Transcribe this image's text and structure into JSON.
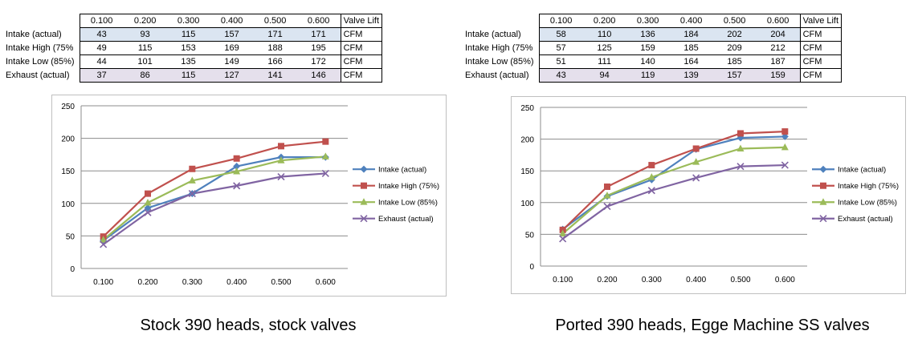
{
  "chart_data": [
    {
      "type": "line",
      "title": "",
      "caption": "Stock 390 heads, stock valves",
      "header_label": "Valve Lift",
      "unit": "CFM",
      "categories": [
        "0.100",
        "0.200",
        "0.300",
        "0.400",
        "0.500",
        "0.600"
      ],
      "ylim": [
        0,
        250
      ],
      "yticks": [
        0,
        50,
        100,
        150,
        200,
        250
      ],
      "grid": true,
      "legend": "right",
      "table_labels": [
        "Intake (actual)",
        "Intake High (75%",
        "Intake Low (85%)",
        "Exhaust (actual)"
      ],
      "series": [
        {
          "name": "Intake (actual)",
          "values": [
            43,
            93,
            115,
            157,
            171,
            171
          ],
          "color": "#4f81bd",
          "marker": "diamond"
        },
        {
          "name": "Intake High (75%)",
          "values": [
            49,
            115,
            153,
            169,
            188,
            195
          ],
          "color": "#c0504d",
          "marker": "square"
        },
        {
          "name": "Intake Low (85%)",
          "values": [
            44,
            101,
            135,
            149,
            166,
            172
          ],
          "color": "#9bbb59",
          "marker": "triangle"
        },
        {
          "name": "Exhaust (actual)",
          "values": [
            37,
            86,
            115,
            127,
            141,
            146
          ],
          "color": "#8064a2",
          "marker": "x"
        }
      ]
    },
    {
      "type": "line",
      "title": "",
      "caption": "Ported 390 heads, Egge Machine SS valves",
      "header_label": "Valve Lift",
      "unit": "CFM",
      "categories": [
        "0.100",
        "0.200",
        "0.300",
        "0.400",
        "0.500",
        "0.600"
      ],
      "ylim": [
        0,
        250
      ],
      "yticks": [
        0,
        50,
        100,
        150,
        200,
        250
      ],
      "grid": true,
      "legend": "right",
      "table_labels": [
        "Intake (actual)",
        "Intake High (75%",
        "Intake Low (85%)",
        "Exhaust (actual)"
      ],
      "series": [
        {
          "name": "Intake (actual)",
          "values": [
            58,
            110,
            136,
            184,
            202,
            204
          ],
          "color": "#4f81bd",
          "marker": "diamond"
        },
        {
          "name": "Intake High (75%)",
          "values": [
            57,
            125,
            159,
            185,
            209,
            212
          ],
          "color": "#c0504d",
          "marker": "square"
        },
        {
          "name": "Intake Low (85%)",
          "values": [
            51,
            111,
            140,
            164,
            185,
            187
          ],
          "color": "#9bbb59",
          "marker": "triangle"
        },
        {
          "name": "Exhaust (actual)",
          "values": [
            43,
            94,
            119,
            139,
            157,
            159
          ],
          "color": "#8064a2",
          "marker": "x"
        }
      ]
    }
  ]
}
